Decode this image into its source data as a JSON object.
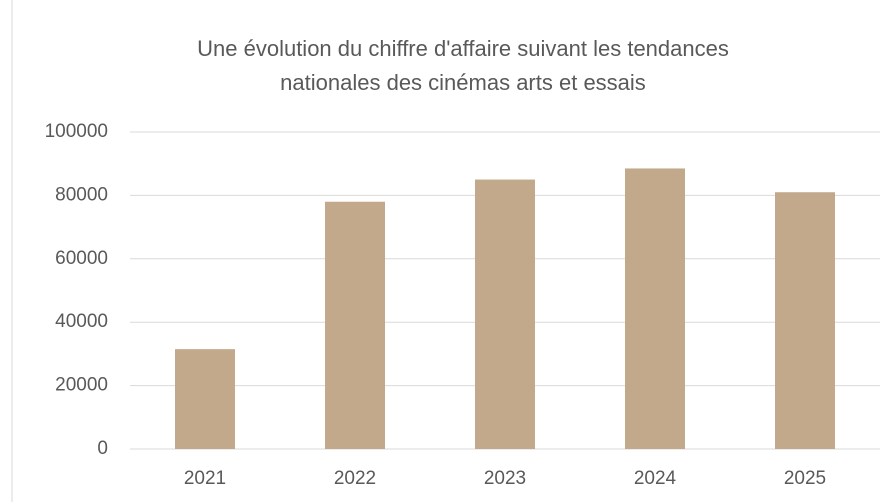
{
  "chart_data": {
    "type": "bar",
    "title": [
      "Une évolution du chiffre d'affaire suivant les tendances",
      "nationales des cinémas arts et essais"
    ],
    "categories": [
      "2021",
      "2022",
      "2023",
      "2024",
      "2025"
    ],
    "values": [
      31500,
      78000,
      85000,
      88500,
      81000
    ],
    "color": "#c3a98b",
    "ylim": [
      0,
      100000
    ],
    "yticks": [
      0,
      20000,
      40000,
      60000,
      80000,
      100000
    ],
    "grid": true
  }
}
